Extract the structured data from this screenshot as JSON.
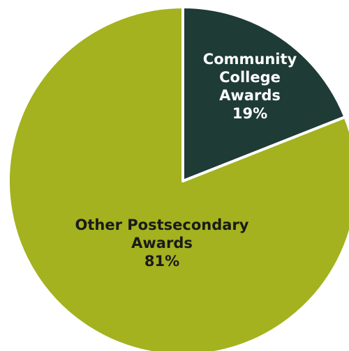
{
  "chart_data": {
    "type": "pie",
    "title": "",
    "slices": [
      {
        "name_lines": [
          "Community",
          "College",
          "Awards"
        ],
        "value": 19,
        "percent_label": "19%",
        "color": "#1e3b36",
        "label_color": "#ffffff"
      },
      {
        "name_lines": [
          "Other Postsecondary",
          "Awards"
        ],
        "value": 81,
        "percent_label": "81%",
        "color": "#a3b21e",
        "label_color": "#1a1a1a"
      }
    ],
    "start_angle_deg": 0,
    "direction": "clockwise",
    "separator_color": "#ffffff",
    "legend": "none"
  }
}
